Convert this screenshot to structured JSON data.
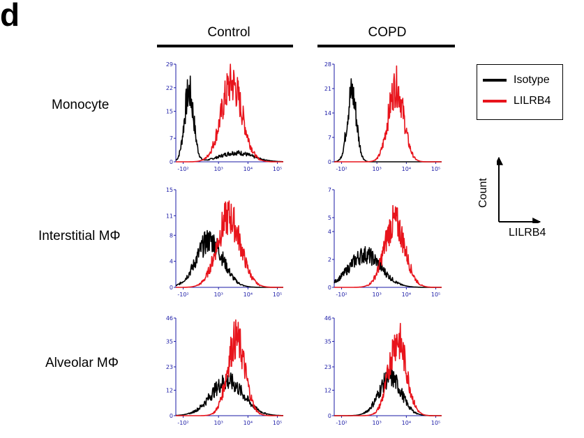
{
  "panel_letter": "d",
  "column_titles": [
    "Control",
    "COPD"
  ],
  "row_labels": [
    "Monocyte",
    "Interstitial MΦ",
    "Alveolar MΦ"
  ],
  "legend": [
    {
      "label": "Isotype",
      "color": "#000000"
    },
    {
      "label": "LILRB4",
      "color": "#e8141c"
    }
  ],
  "axis_key": {
    "x": "LILRB4",
    "y": "Count"
  },
  "chart_data": [
    {
      "type": "area",
      "row": "Monocyte",
      "column": "Control",
      "xlabel": "",
      "ylabel": "",
      "x_ticks": [
        "-10²",
        "10³",
        "10⁴",
        "10⁵"
      ],
      "y_ticks": [
        0,
        7,
        15,
        22,
        29
      ],
      "ylim": [
        0,
        29
      ],
      "series": [
        {
          "name": "Isotype",
          "color": "#000000",
          "peak_log": 2.0,
          "width": 0.16,
          "height": 23,
          "tail": 3
        },
        {
          "name": "LILRB4",
          "color": "#e8141c",
          "peak_log": 3.45,
          "width": 0.36,
          "height": 26,
          "tail": 0
        }
      ]
    },
    {
      "type": "area",
      "row": "Monocyte",
      "column": "COPD",
      "xlabel": "",
      "ylabel": "",
      "x_ticks": [
        "-10²",
        "10³",
        "10⁴",
        "10⁵"
      ],
      "y_ticks": [
        0,
        7,
        14,
        21,
        28
      ],
      "ylim": [
        0,
        28
      ],
      "series": [
        {
          "name": "Isotype",
          "color": "#000000",
          "peak_log": 2.15,
          "width": 0.16,
          "height": 22,
          "tail": 0
        },
        {
          "name": "LILRB4",
          "color": "#e8141c",
          "peak_log": 3.65,
          "width": 0.26,
          "height": 24,
          "tail": 0
        }
      ]
    },
    {
      "type": "area",
      "row": "Interstitial MΦ",
      "column": "Control",
      "xlabel": "",
      "ylabel": "",
      "x_ticks": [
        "-10²",
        "10³",
        "10⁴",
        "10⁵"
      ],
      "y_ticks": [
        0,
        4,
        8,
        11,
        15
      ],
      "ylim": [
        0,
        15
      ],
      "series": [
        {
          "name": "Isotype",
          "color": "#000000",
          "peak_log": 2.7,
          "width": 0.45,
          "height": 8,
          "tail": 0
        },
        {
          "name": "LILRB4",
          "color": "#e8141c",
          "peak_log": 3.35,
          "width": 0.4,
          "height": 12,
          "tail": 0
        }
      ]
    },
    {
      "type": "area",
      "row": "Interstitial MΦ",
      "column": "COPD",
      "xlabel": "",
      "ylabel": "",
      "x_ticks": [
        "-10²",
        "10³",
        "10⁴",
        "10⁵"
      ],
      "y_ticks": [
        0,
        2,
        4,
        5,
        7
      ],
      "ylim": [
        0,
        7
      ],
      "series": [
        {
          "name": "Isotype",
          "color": "#000000",
          "peak_log": 2.6,
          "width": 0.55,
          "height": 2.6,
          "tail": 0
        },
        {
          "name": "LILRB4",
          "color": "#e8141c",
          "peak_log": 3.6,
          "width": 0.35,
          "height": 5.2,
          "tail": 0
        }
      ]
    },
    {
      "type": "area",
      "row": "Alveolar MΦ",
      "column": "Control",
      "xlabel": "",
      "ylabel": "",
      "x_ticks": [
        "-10²",
        "10³",
        "10⁴",
        "10⁵"
      ],
      "y_ticks": [
        0,
        12,
        23,
        35,
        46
      ],
      "ylim": [
        0,
        46
      ],
      "series": [
        {
          "name": "Isotype",
          "color": "#000000",
          "peak_log": 3.3,
          "width": 0.55,
          "height": 18,
          "tail": 0
        },
        {
          "name": "LILRB4",
          "color": "#e8141c",
          "peak_log": 3.6,
          "width": 0.3,
          "height": 40,
          "tail": 0
        }
      ]
    },
    {
      "type": "area",
      "row": "Alveolar MΦ",
      "column": "COPD",
      "xlabel": "",
      "ylabel": "",
      "x_ticks": [
        "-10²",
        "10³",
        "10⁴",
        "10⁵"
      ],
      "y_ticks": [
        0,
        12,
        23,
        35,
        46
      ],
      "ylim": [
        0,
        46
      ],
      "series": [
        {
          "name": "Isotype",
          "color": "#000000",
          "peak_log": 3.45,
          "width": 0.38,
          "height": 20,
          "tail": 0
        },
        {
          "name": "LILRB4",
          "color": "#e8141c",
          "peak_log": 3.7,
          "width": 0.3,
          "height": 40,
          "tail": 0
        }
      ]
    }
  ]
}
